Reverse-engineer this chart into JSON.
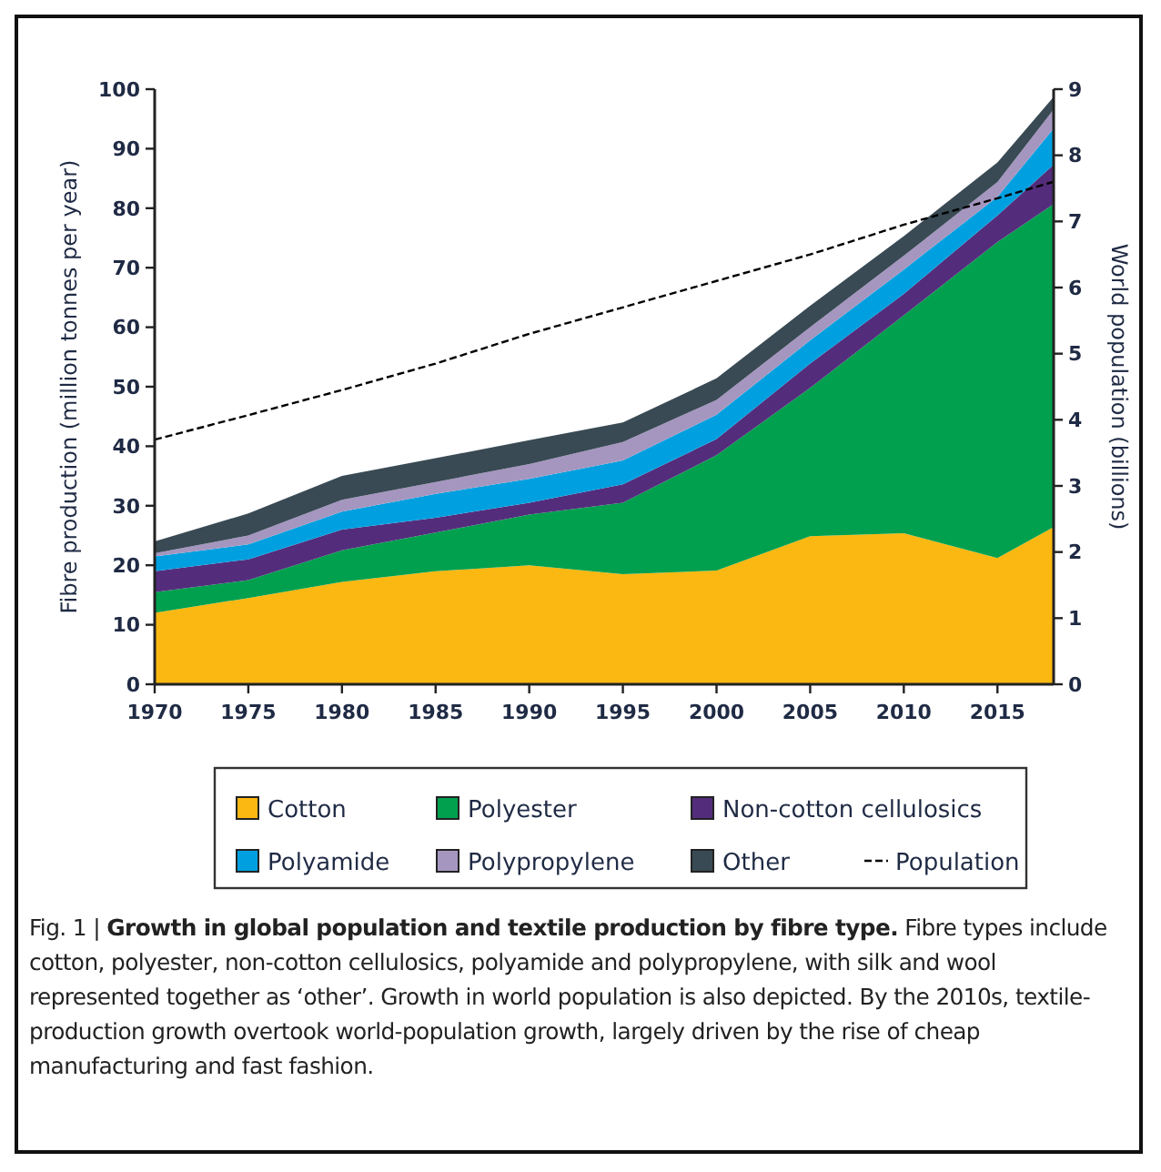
{
  "chart_data": {
    "type": "area",
    "stacked": true,
    "title": "Growth in global population and textile production by fibre type.",
    "annotations": [
      "Fig. 1 | ",
      "Fibre types include cotton, polyester, non-cotton cellulosics, polyamide and polypropylene, with silk and wool represented together as ‘other’. Growth in world population is also depicted. By the 2010s, textile-production growth overtook world-population growth, largely driven by the rise of cheap manufacturing and fast fashion."
    ],
    "ylabel": "Fibre production (million tonnes per year)",
    "y2label": "World population (billions)",
    "x": [
      1970,
      1975,
      1980,
      1985,
      1990,
      1995,
      2000,
      2005,
      2010,
      2015,
      2018
    ],
    "xlim": [
      1970,
      2018
    ],
    "xticks": [
      1970,
      1975,
      1980,
      1985,
      1990,
      1995,
      2000,
      2005,
      2010,
      2015
    ],
    "ylim": [
      0,
      100
    ],
    "yticks": [
      0,
      10,
      20,
      30,
      40,
      50,
      60,
      70,
      80,
      90,
      100
    ],
    "y2lim": [
      0,
      9
    ],
    "y2ticks": [
      0,
      1,
      2,
      3,
      4,
      5,
      6,
      7,
      8,
      9
    ],
    "legend": "bottom",
    "grid": false,
    "series": [
      {
        "name": "Cotton",
        "color": "#fbb812",
        "values": [
          12,
          14.5,
          17.2,
          19,
          20,
          18.5,
          19.1,
          24.9,
          25.4,
          21.2,
          26.4
        ]
      },
      {
        "name": "Polyester",
        "color": "#00a04e",
        "values": [
          3.5,
          3,
          5.3,
          6.5,
          8.5,
          12,
          19.4,
          24.9,
          36.6,
          53.1,
          54.3
        ]
      },
      {
        "name": "Non-cotton cellulosics",
        "color": "#532d7c",
        "values": [
          3.5,
          3.5,
          3.5,
          2.5,
          2,
          3.1,
          2.7,
          4.1,
          3.6,
          4.5,
          6.6
        ]
      },
      {
        "name": "Polyamide",
        "color": "#00a0e0",
        "values": [
          2.5,
          2.5,
          3,
          4,
          4,
          4,
          4.1,
          3.9,
          4.1,
          3.1,
          6.1
        ]
      },
      {
        "name": "Polypropylene",
        "color": "#a596c0",
        "values": [
          0.5,
          1.5,
          2,
          2,
          2.5,
          3.1,
          2.5,
          2.2,
          2.3,
          2.5,
          3.2
        ]
      },
      {
        "name": "Other",
        "color": "#394a54",
        "values": [
          2,
          3.7,
          4,
          4,
          4,
          3.3,
          3.6,
          3.6,
          3.3,
          3.3,
          2.1
        ]
      },
      {
        "name": "Population",
        "type": "line",
        "axis": "y2",
        "color": "#000000",
        "line_style": "dashed",
        "marker": "none",
        "values": [
          3.7,
          4.07,
          4.45,
          4.85,
          5.3,
          5.7,
          6.1,
          6.5,
          6.95,
          7.35,
          7.6
        ]
      }
    ]
  }
}
